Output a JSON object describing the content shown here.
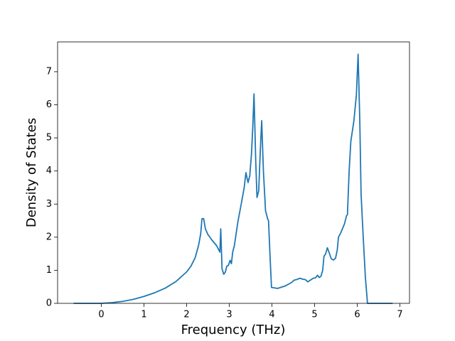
{
  "chart_data": {
    "type": "line",
    "x_label": "Frequency (THz)",
    "y_label": "Density of States",
    "color": "#1f77b4",
    "x": [
      -0.65,
      0,
      0.25,
      0.5,
      0.75,
      1.0,
      1.25,
      1.5,
      1.75,
      2.0,
      2.1,
      2.2,
      2.28,
      2.33,
      2.36,
      2.4,
      2.44,
      2.5,
      2.6,
      2.7,
      2.78,
      2.8,
      2.83,
      2.87,
      2.91,
      2.94,
      2.98,
      3.02,
      3.05,
      3.08,
      3.12,
      3.2,
      3.28,
      3.35,
      3.39,
      3.44,
      3.48,
      3.52,
      3.55,
      3.58,
      3.62,
      3.65,
      3.69,
      3.73,
      3.76,
      3.8,
      3.85,
      3.9,
      3.92,
      3.96,
      3.99,
      4.05,
      4.13,
      4.3,
      4.45,
      4.52,
      4.58,
      4.66,
      4.72,
      4.78,
      4.84,
      4.9,
      4.97,
      5.02,
      5.07,
      5.11,
      5.15,
      5.19,
      5.22,
      5.26,
      5.3,
      5.35,
      5.39,
      5.44,
      5.49,
      5.53,
      5.56,
      5.62,
      5.7,
      5.75,
      5.77,
      5.81,
      5.85,
      5.92,
      5.98,
      6.02,
      6.06,
      6.09,
      6.14,
      6.19,
      6.24,
      6.83
    ],
    "values": [
      0,
      0,
      0.02,
      0.06,
      0.12,
      0.21,
      0.32,
      0.46,
      0.66,
      0.95,
      1.12,
      1.38,
      1.75,
      2.1,
      2.56,
      2.56,
      2.25,
      2.08,
      1.9,
      1.75,
      1.55,
      2.25,
      1.05,
      0.88,
      0.95,
      1.12,
      1.15,
      1.3,
      1.2,
      1.55,
      1.75,
      2.45,
      3.0,
      3.5,
      3.95,
      3.65,
      3.85,
      4.5,
      5.3,
      6.33,
      4.3,
      3.2,
      3.4,
      4.7,
      5.52,
      4.0,
      2.8,
      2.55,
      2.5,
      1.3,
      0.48,
      0.47,
      0.45,
      0.52,
      0.62,
      0.7,
      0.72,
      0.76,
      0.73,
      0.72,
      0.65,
      0.7,
      0.76,
      0.77,
      0.85,
      0.78,
      0.82,
      1.0,
      1.42,
      1.5,
      1.68,
      1.5,
      1.35,
      1.31,
      1.36,
      1.6,
      2.0,
      2.15,
      2.4,
      2.65,
      2.68,
      4.0,
      4.9,
      5.5,
      6.3,
      7.53,
      5.5,
      3.3,
      2.0,
      0.8,
      0,
      0
    ],
    "xlim": [
      -1.025,
      7.225
    ],
    "ylim": [
      0,
      7.9
    ],
    "xticks": [
      0,
      1,
      2,
      3,
      4,
      5,
      6,
      7
    ],
    "yticks": [
      0,
      1,
      2,
      3,
      4,
      5,
      6,
      7
    ]
  }
}
